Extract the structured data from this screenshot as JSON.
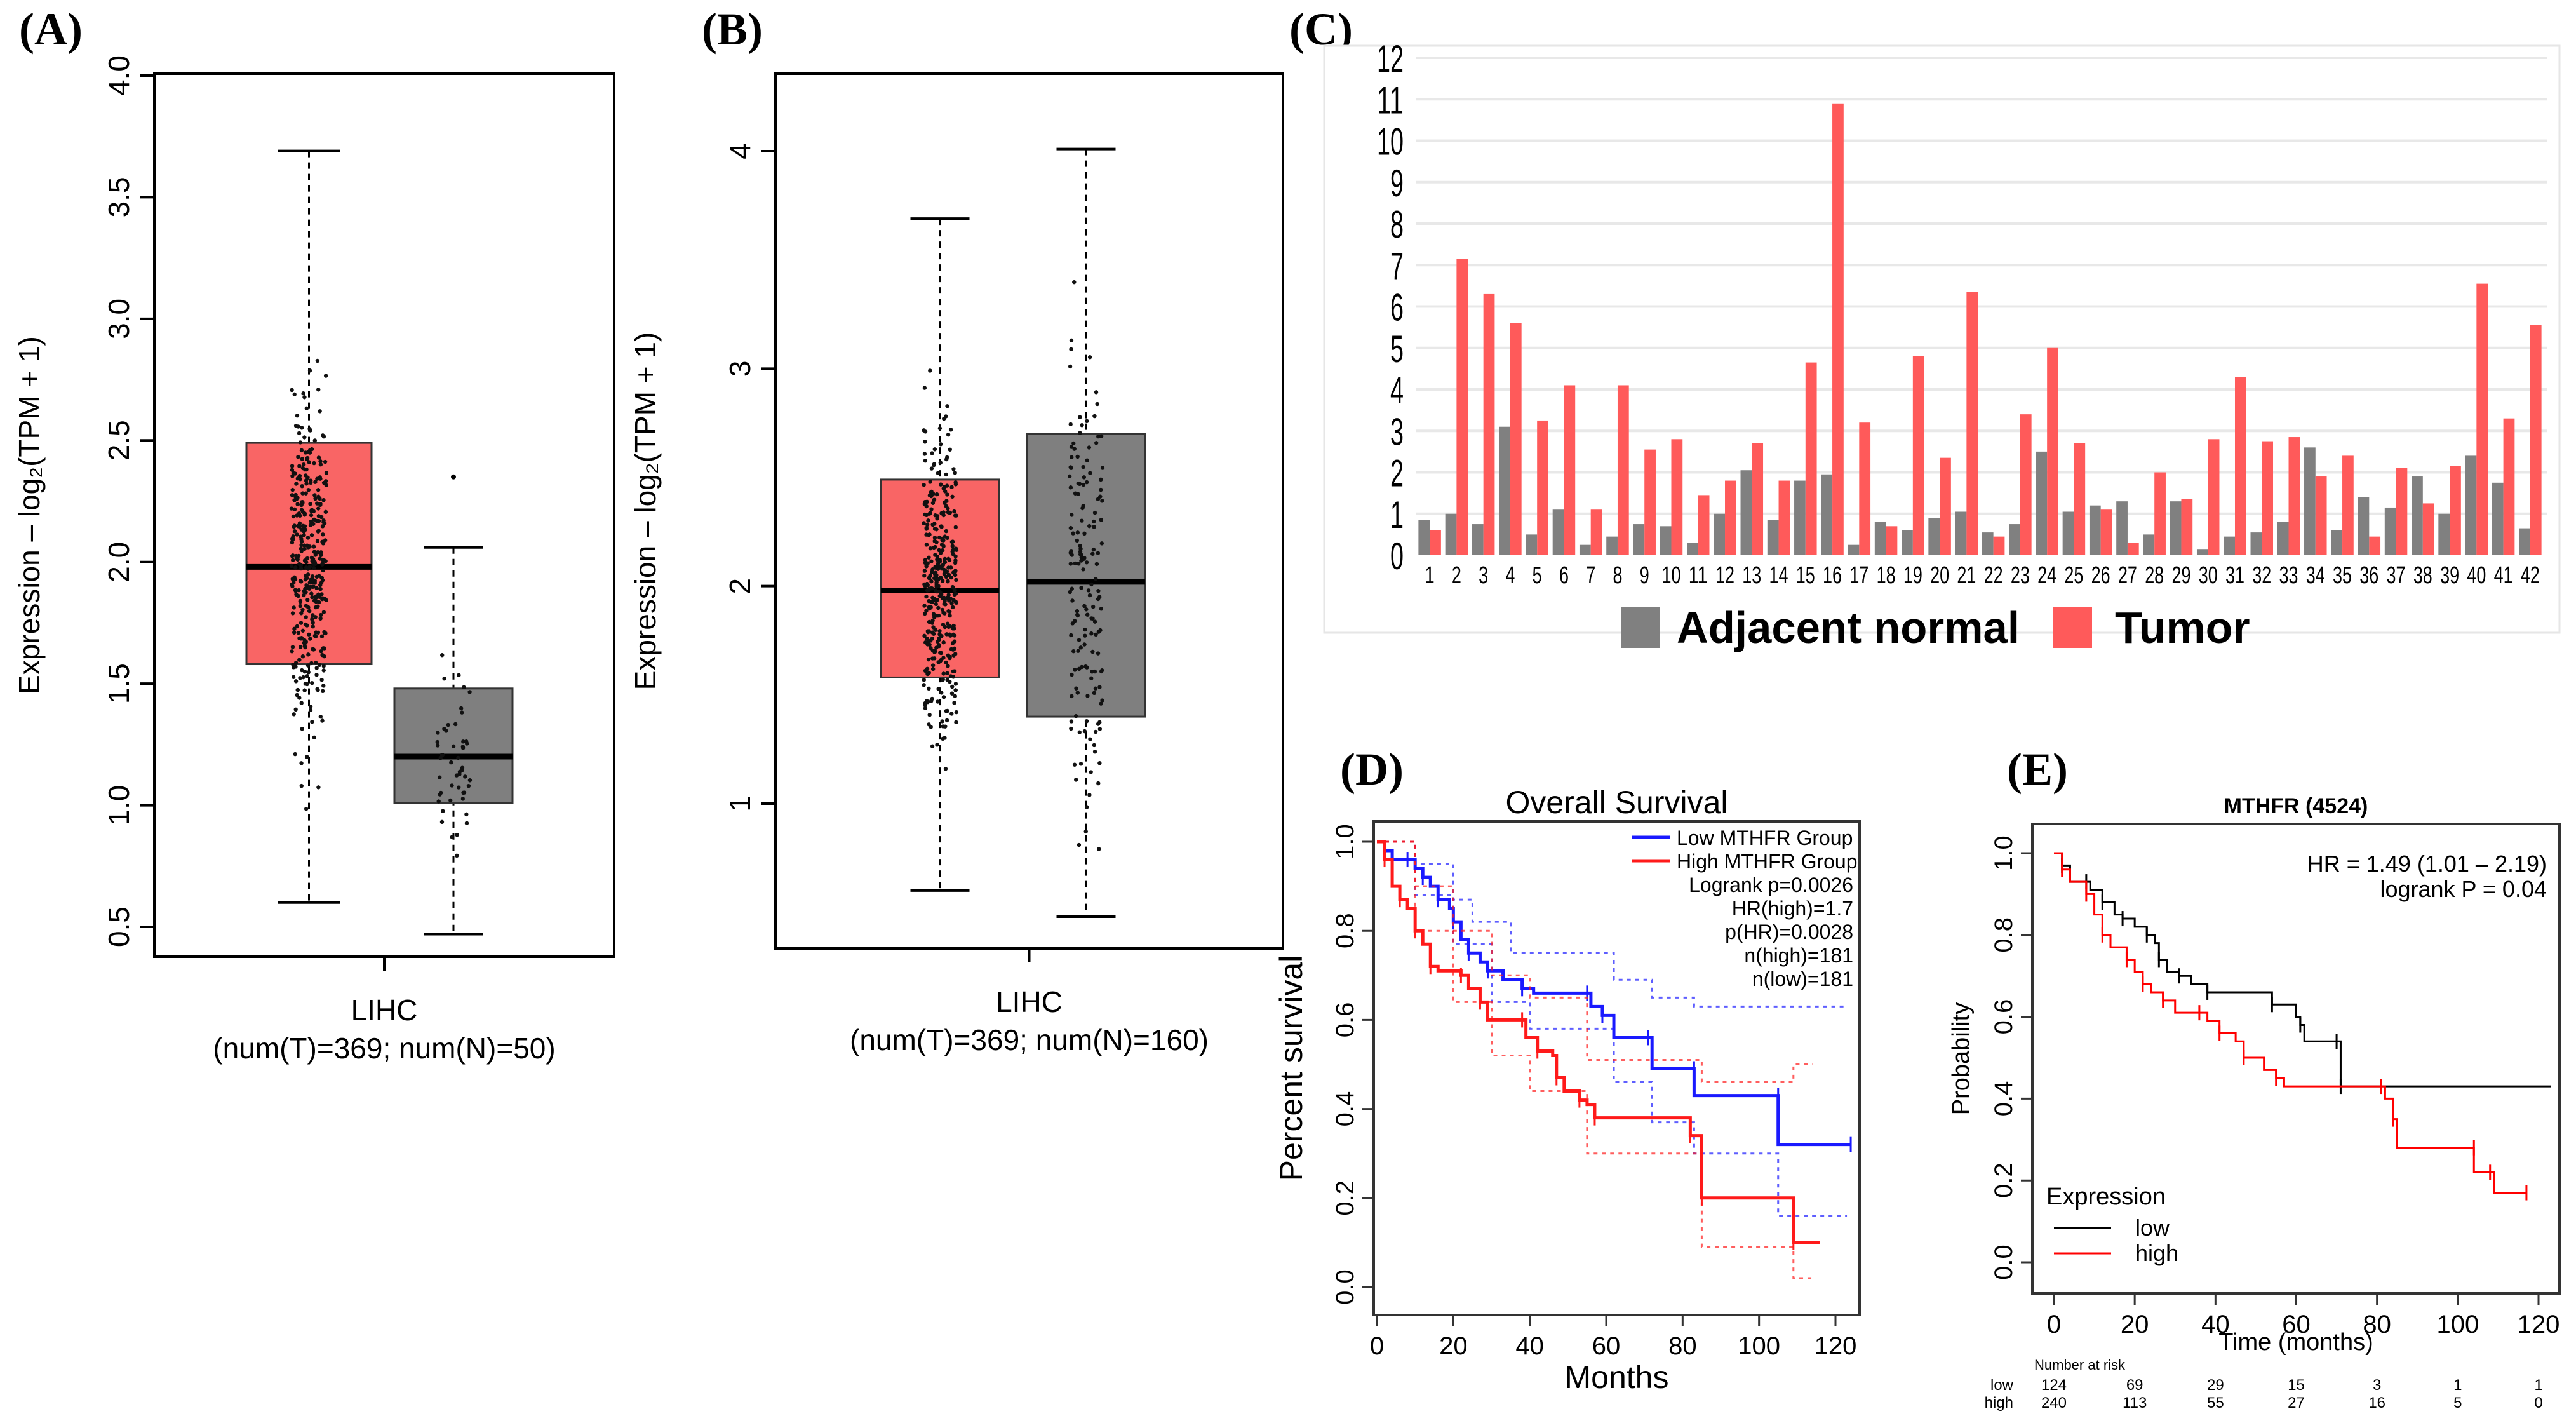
{
  "panel_labels": {
    "a": "(A)",
    "b": "(B)",
    "c": "(C)",
    "d": "(D)",
    "e": "(E)"
  },
  "chart_data": [
    {
      "id": "A",
      "type": "box",
      "ylabel": "Expression – log₂(TPM + 1)",
      "xlabel_line1": "LIHC",
      "xlabel_line2": "(num(T)=369; num(N)=50)",
      "ylim": [
        0.5,
        4.0
      ],
      "yticks": [
        "0.5",
        "1.0",
        "1.5",
        "2.0",
        "2.5",
        "3.0",
        "3.5",
        "4.0"
      ],
      "boxes": [
        {
          "name": "Tumor",
          "n": 369,
          "color": "#f96565",
          "q1": 1.58,
          "median": 1.98,
          "q3": 2.49,
          "whisker_low": 0.6,
          "whisker_high": 3.69,
          "outliers": []
        },
        {
          "name": "Normal",
          "n": 50,
          "color": "#7f7f7f",
          "q1": 1.01,
          "median": 1.2,
          "q3": 1.48,
          "whisker_low": 0.47,
          "whisker_high": 2.06,
          "outliers": [
            2.35
          ]
        }
      ]
    },
    {
      "id": "B",
      "type": "box",
      "ylabel": "Expression – log₂(TPM + 1)",
      "xlabel_line1": "LIHC",
      "xlabel_line2": "(num(T)=369; num(N)=160)",
      "ylim": [
        0.3,
        4.3
      ],
      "yticks": [
        "1",
        "2",
        "3",
        "4"
      ],
      "boxes": [
        {
          "name": "Tumor",
          "n": 369,
          "color": "#f96565",
          "q1": 1.58,
          "median": 1.98,
          "q3": 2.49,
          "whisker_low": 0.6,
          "whisker_high": 3.69,
          "outliers": []
        },
        {
          "name": "Normal",
          "n": 160,
          "color": "#7f7f7f",
          "q1": 1.4,
          "median": 2.02,
          "q3": 2.7,
          "whisker_low": 0.48,
          "whisker_high": 4.01,
          "outliers": []
        }
      ]
    },
    {
      "id": "C",
      "type": "bar",
      "ylim": [
        0,
        12
      ],
      "yticks": [
        "0",
        "1",
        "2",
        "3",
        "4",
        "5",
        "6",
        "7",
        "8",
        "9",
        "10",
        "11",
        "12"
      ],
      "categories": [
        "1",
        "2",
        "3",
        "4",
        "5",
        "6",
        "7",
        "8",
        "9",
        "10",
        "11",
        "12",
        "13",
        "14",
        "15",
        "16",
        "17",
        "18",
        "19",
        "20",
        "21",
        "22",
        "23",
        "24",
        "25",
        "26",
        "27",
        "28",
        "29",
        "30",
        "31",
        "32",
        "33",
        "34",
        "35",
        "36",
        "37",
        "38",
        "39",
        "40",
        "41",
        "42"
      ],
      "series": [
        {
          "name": "Adjacent normal",
          "color": "#808080",
          "values": [
            0.85,
            1.0,
            0.75,
            3.1,
            0.5,
            1.1,
            0.25,
            0.45,
            0.75,
            0.7,
            0.3,
            1.0,
            2.05,
            0.85,
            1.8,
            1.95,
            0.25,
            0.8,
            0.6,
            0.9,
            1.05,
            0.55,
            0.75,
            2.5,
            1.05,
            1.2,
            1.3,
            0.5,
            1.3,
            0.15,
            0.45,
            0.55,
            0.8,
            2.6,
            0.6,
            1.4,
            1.15,
            1.9,
            1.0,
            2.4,
            1.75,
            0.65
          ]
        },
        {
          "name": "Tumor",
          "color": "#ff5a5a",
          "values": [
            0.6,
            7.15,
            6.3,
            5.6,
            3.25,
            4.1,
            1.1,
            4.1,
            2.55,
            2.8,
            1.45,
            1.8,
            2.7,
            1.8,
            4.65,
            10.9,
            3.2,
            0.7,
            4.8,
            2.35,
            6.35,
            0.45,
            3.4,
            5.0,
            2.7,
            1.1,
            0.3,
            2.0,
            1.35,
            2.8,
            4.3,
            2.75,
            2.85,
            1.9,
            2.4,
            0.45,
            2.1,
            1.25,
            2.15,
            6.55,
            3.3,
            5.55
          ]
        }
      ]
    },
    {
      "id": "D",
      "type": "line",
      "title": "Overall Survival",
      "xlabel": "Months",
      "ylabel": "Percent survival",
      "xlim": [
        0,
        120
      ],
      "ylim": [
        0,
        1
      ],
      "xticks": [
        "0",
        "20",
        "40",
        "60",
        "80",
        "100",
        "120"
      ],
      "yticks": [
        "0.0",
        "0.2",
        "0.4",
        "0.6",
        "0.8",
        "1.0"
      ],
      "legend": [
        "Low MTHFR Group",
        "High MTHFR Group"
      ],
      "stats": [
        "Logrank p=0.0026",
        "HR(high)=1.7",
        "p(HR)=0.0028",
        "n(high)=181",
        "n(low)=181"
      ],
      "series": [
        {
          "name": "Low MTHFR Group",
          "color": "#1a1aff",
          "points": [
            [
              0,
              1
            ],
            [
              2,
              0.98
            ],
            [
              4,
              0.96
            ],
            [
              8,
              0.96
            ],
            [
              10,
              0.94
            ],
            [
              12,
              0.92
            ],
            [
              14,
              0.9
            ],
            [
              16,
              0.87
            ],
            [
              19,
              0.85
            ],
            [
              20,
              0.82
            ],
            [
              22,
              0.78
            ],
            [
              24,
              0.75
            ],
            [
              27,
              0.73
            ],
            [
              29,
              0.71
            ],
            [
              33,
              0.69
            ],
            [
              38,
              0.67
            ],
            [
              41,
              0.66
            ],
            [
              55,
              0.66
            ],
            [
              56,
              0.63
            ],
            [
              59,
              0.61
            ],
            [
              62,
              0.56
            ],
            [
              71,
              0.56
            ],
            [
              72,
              0.49
            ],
            [
              83,
              0.49
            ],
            [
              83,
              0.43
            ],
            [
              105,
              0.43
            ],
            [
              105,
              0.32
            ],
            [
              124,
              0.32
            ]
          ],
          "ci_upper": [
            [
              0,
              1
            ],
            [
              10,
              0.95
            ],
            [
              20,
              0.87
            ],
            [
              25,
              0.82
            ],
            [
              35,
              0.75
            ],
            [
              54,
              0.75
            ],
            [
              62,
              0.69
            ],
            [
              72,
              0.65
            ],
            [
              83,
              0.63
            ],
            [
              123,
              0.63
            ]
          ],
          "ci_lower": [
            [
              0,
              1
            ],
            [
              10,
              0.88
            ],
            [
              20,
              0.77
            ],
            [
              30,
              0.64
            ],
            [
              40,
              0.58
            ],
            [
              55,
              0.58
            ],
            [
              62,
              0.46
            ],
            [
              72,
              0.37
            ],
            [
              83,
              0.3
            ],
            [
              105,
              0.3
            ],
            [
              105,
              0.16
            ],
            [
              123,
              0.16
            ]
          ]
        },
        {
          "name": "High MTHFR Group",
          "color": "#ff1a1a",
          "points": [
            [
              0,
              1
            ],
            [
              2,
              0.96
            ],
            [
              4,
              0.9
            ],
            [
              6,
              0.87
            ],
            [
              8,
              0.85
            ],
            [
              10,
              0.8
            ],
            [
              12,
              0.77
            ],
            [
              14,
              0.72
            ],
            [
              16,
              0.71
            ],
            [
              22,
              0.7
            ],
            [
              24,
              0.67
            ],
            [
              27,
              0.64
            ],
            [
              29,
              0.6
            ],
            [
              38,
              0.6
            ],
            [
              39,
              0.56
            ],
            [
              42,
              0.53
            ],
            [
              46,
              0.52
            ],
            [
              47,
              0.47
            ],
            [
              49,
              0.44
            ],
            [
              53,
              0.42
            ],
            [
              55,
              0.41
            ],
            [
              57,
              0.38
            ],
            [
              82,
              0.38
            ],
            [
              82,
              0.34
            ],
            [
              85,
              0.34
            ],
            [
              85,
              0.2
            ],
            [
              109,
              0.2
            ],
            [
              109,
              0.1
            ],
            [
              116,
              0.1
            ]
          ],
          "ci_upper": [
            [
              0,
              1
            ],
            [
              10,
              0.9
            ],
            [
              20,
              0.8
            ],
            [
              30,
              0.7
            ],
            [
              40,
              0.65
            ],
            [
              55,
              0.51
            ],
            [
              82,
              0.51
            ],
            [
              85,
              0.46
            ],
            [
              108,
              0.46
            ],
            [
              109,
              0.5
            ],
            [
              114,
              0.5
            ]
          ],
          "ci_lower": [
            [
              0,
              1
            ],
            [
              10,
              0.8
            ],
            [
              20,
              0.64
            ],
            [
              30,
              0.52
            ],
            [
              40,
              0.44
            ],
            [
              55,
              0.3
            ],
            [
              82,
              0.3
            ],
            [
              85,
              0.09
            ],
            [
              109,
              0.09
            ],
            [
              109,
              0.02
            ],
            [
              115,
              0.02
            ]
          ]
        }
      ]
    },
    {
      "id": "E",
      "type": "line",
      "title": "MTHFR (4524)",
      "xlabel": "Time (months)",
      "ylabel": "Probability",
      "xlim": [
        0,
        120
      ],
      "ylim": [
        0,
        1
      ],
      "xticks": [
        "0",
        "20",
        "40",
        "60",
        "80",
        "100",
        "120"
      ],
      "yticks": [
        "0.0",
        "0.2",
        "0.4",
        "0.6",
        "0.8",
        "1.0"
      ],
      "stats": [
        "HR = 1.49 (1.01 – 2.19)",
        "logrank P = 0.04"
      ],
      "legend_title": "Expression",
      "legend": [
        "low",
        "high"
      ],
      "series": [
        {
          "name": "low",
          "color": "#000000",
          "points": [
            [
              0,
              1
            ],
            [
              2,
              0.97
            ],
            [
              4,
              0.93
            ],
            [
              8,
              0.93
            ],
            [
              9,
              0.91
            ],
            [
              12,
              0.88
            ],
            [
              15,
              0.85
            ],
            [
              17,
              0.84
            ],
            [
              20,
              0.82
            ],
            [
              23,
              0.8
            ],
            [
              25,
              0.78
            ],
            [
              26,
              0.74
            ],
            [
              28,
              0.71
            ],
            [
              31,
              0.7
            ],
            [
              34,
              0.68
            ],
            [
              38,
              0.66
            ],
            [
              53,
              0.66
            ],
            [
              54,
              0.63
            ],
            [
              60,
              0.6
            ],
            [
              61,
              0.58
            ],
            [
              62,
              0.54
            ],
            [
              70,
              0.54
            ],
            [
              71,
              0.48
            ],
            [
              71,
              0.43
            ],
            [
              123,
              0.43
            ]
          ]
        },
        {
          "name": "high",
          "color": "#ff0000",
          "points": [
            [
              0,
              1
            ],
            [
              2,
              0.96
            ],
            [
              4,
              0.93
            ],
            [
              8,
              0.9
            ],
            [
              10,
              0.85
            ],
            [
              12,
              0.8
            ],
            [
              14,
              0.77
            ],
            [
              18,
              0.74
            ],
            [
              20,
              0.71
            ],
            [
              22,
              0.68
            ],
            [
              24,
              0.66
            ],
            [
              27,
              0.64
            ],
            [
              30,
              0.61
            ],
            [
              36,
              0.61
            ],
            [
              38,
              0.59
            ],
            [
              41,
              0.56
            ],
            [
              45,
              0.54
            ],
            [
              47,
              0.5
            ],
            [
              52,
              0.47
            ],
            [
              55,
              0.45
            ],
            [
              57,
              0.43
            ],
            [
              81,
              0.43
            ],
            [
              82,
              0.4
            ],
            [
              84,
              0.35
            ],
            [
              85,
              0.28
            ],
            [
              104,
              0.28
            ],
            [
              104,
              0.22
            ],
            [
              108,
              0.22
            ],
            [
              109,
              0.17
            ],
            [
              117,
              0.17
            ]
          ]
        }
      ],
      "risk_table": {
        "title": "Number at risk",
        "rows": [
          {
            "label": "low",
            "color": "#000000",
            "values": [
              "124",
              "69",
              "29",
              "15",
              "3",
              "1",
              "1"
            ]
          },
          {
            "label": "high",
            "color": "#ff0000",
            "values": [
              "240",
              "113",
              "55",
              "27",
              "16",
              "5",
              "0"
            ]
          }
        ]
      }
    }
  ]
}
